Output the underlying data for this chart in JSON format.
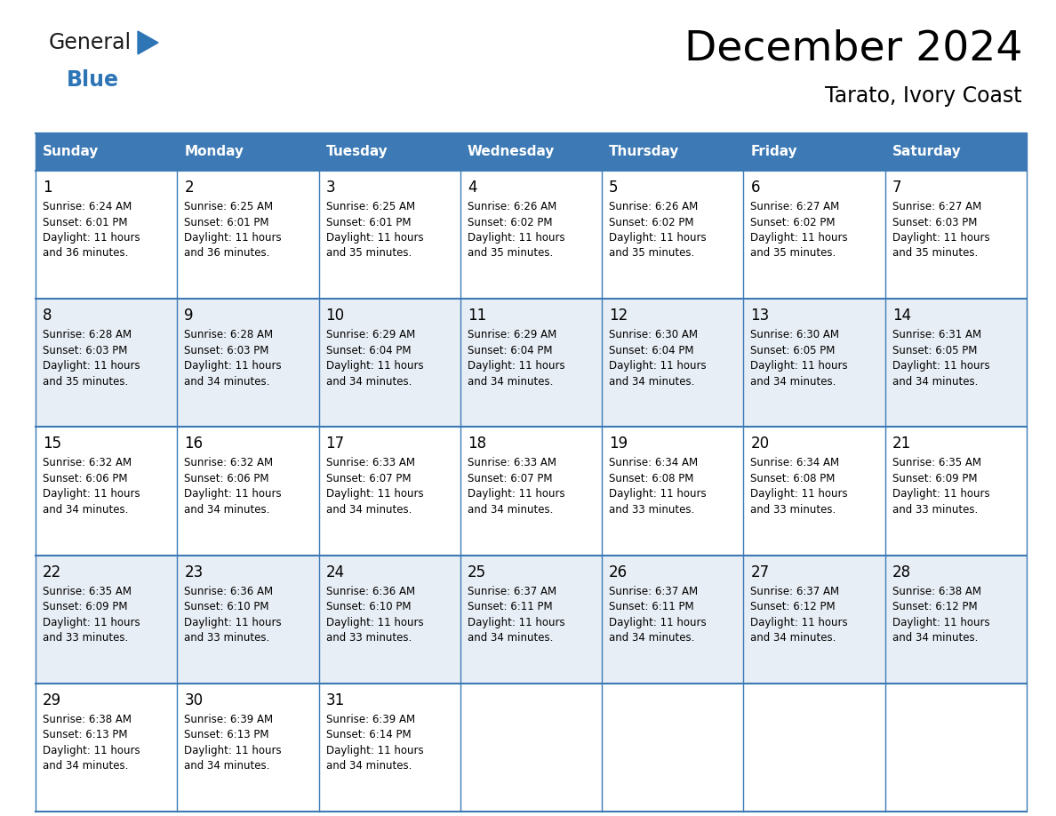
{
  "title": "December 2024",
  "subtitle": "Tarato, Ivory Coast",
  "header_color": "#3d7ab5",
  "header_text_color": "#FFFFFF",
  "days_of_week": [
    "Sunday",
    "Monday",
    "Tuesday",
    "Wednesday",
    "Thursday",
    "Friday",
    "Saturday"
  ],
  "row_colors": [
    "#FFFFFF",
    "#e8eef5",
    "#FFFFFF",
    "#e8eef5",
    "#FFFFFF"
  ],
  "white_color": "#FFFFFF",
  "grid_line_color": "#3d7ab5",
  "text_color": "#000000",
  "logo_general_color": "#1a1a1a",
  "logo_blue_color": "#2E75B6",
  "calendar_data": [
    [
      {
        "day": 1,
        "sunrise": "6:24 AM",
        "sunset": "6:01 PM",
        "daylight": "11 hours and 36 minutes."
      },
      {
        "day": 2,
        "sunrise": "6:25 AM",
        "sunset": "6:01 PM",
        "daylight": "11 hours and 36 minutes."
      },
      {
        "day": 3,
        "sunrise": "6:25 AM",
        "sunset": "6:01 PM",
        "daylight": "11 hours and 35 minutes."
      },
      {
        "day": 4,
        "sunrise": "6:26 AM",
        "sunset": "6:02 PM",
        "daylight": "11 hours and 35 minutes."
      },
      {
        "day": 5,
        "sunrise": "6:26 AM",
        "sunset": "6:02 PM",
        "daylight": "11 hours and 35 minutes."
      },
      {
        "day": 6,
        "sunrise": "6:27 AM",
        "sunset": "6:02 PM",
        "daylight": "11 hours and 35 minutes."
      },
      {
        "day": 7,
        "sunrise": "6:27 AM",
        "sunset": "6:03 PM",
        "daylight": "11 hours and 35 minutes."
      }
    ],
    [
      {
        "day": 8,
        "sunrise": "6:28 AM",
        "sunset": "6:03 PM",
        "daylight": "11 hours and 35 minutes."
      },
      {
        "day": 9,
        "sunrise": "6:28 AM",
        "sunset": "6:03 PM",
        "daylight": "11 hours and 34 minutes."
      },
      {
        "day": 10,
        "sunrise": "6:29 AM",
        "sunset": "6:04 PM",
        "daylight": "11 hours and 34 minutes."
      },
      {
        "day": 11,
        "sunrise": "6:29 AM",
        "sunset": "6:04 PM",
        "daylight": "11 hours and 34 minutes."
      },
      {
        "day": 12,
        "sunrise": "6:30 AM",
        "sunset": "6:04 PM",
        "daylight": "11 hours and 34 minutes."
      },
      {
        "day": 13,
        "sunrise": "6:30 AM",
        "sunset": "6:05 PM",
        "daylight": "11 hours and 34 minutes."
      },
      {
        "day": 14,
        "sunrise": "6:31 AM",
        "sunset": "6:05 PM",
        "daylight": "11 hours and 34 minutes."
      }
    ],
    [
      {
        "day": 15,
        "sunrise": "6:32 AM",
        "sunset": "6:06 PM",
        "daylight": "11 hours and 34 minutes."
      },
      {
        "day": 16,
        "sunrise": "6:32 AM",
        "sunset": "6:06 PM",
        "daylight": "11 hours and 34 minutes."
      },
      {
        "day": 17,
        "sunrise": "6:33 AM",
        "sunset": "6:07 PM",
        "daylight": "11 hours and 34 minutes."
      },
      {
        "day": 18,
        "sunrise": "6:33 AM",
        "sunset": "6:07 PM",
        "daylight": "11 hours and 34 minutes."
      },
      {
        "day": 19,
        "sunrise": "6:34 AM",
        "sunset": "6:08 PM",
        "daylight": "11 hours and 33 minutes."
      },
      {
        "day": 20,
        "sunrise": "6:34 AM",
        "sunset": "6:08 PM",
        "daylight": "11 hours and 33 minutes."
      },
      {
        "day": 21,
        "sunrise": "6:35 AM",
        "sunset": "6:09 PM",
        "daylight": "11 hours and 33 minutes."
      }
    ],
    [
      {
        "day": 22,
        "sunrise": "6:35 AM",
        "sunset": "6:09 PM",
        "daylight": "11 hours and 33 minutes."
      },
      {
        "day": 23,
        "sunrise": "6:36 AM",
        "sunset": "6:10 PM",
        "daylight": "11 hours and 33 minutes."
      },
      {
        "day": 24,
        "sunrise": "6:36 AM",
        "sunset": "6:10 PM",
        "daylight": "11 hours and 33 minutes."
      },
      {
        "day": 25,
        "sunrise": "6:37 AM",
        "sunset": "6:11 PM",
        "daylight": "11 hours and 34 minutes."
      },
      {
        "day": 26,
        "sunrise": "6:37 AM",
        "sunset": "6:11 PM",
        "daylight": "11 hours and 34 minutes."
      },
      {
        "day": 27,
        "sunrise": "6:37 AM",
        "sunset": "6:12 PM",
        "daylight": "11 hours and 34 minutes."
      },
      {
        "day": 28,
        "sunrise": "6:38 AM",
        "sunset": "6:12 PM",
        "daylight": "11 hours and 34 minutes."
      }
    ],
    [
      {
        "day": 29,
        "sunrise": "6:38 AM",
        "sunset": "6:13 PM",
        "daylight": "11 hours and 34 minutes."
      },
      {
        "day": 30,
        "sunrise": "6:39 AM",
        "sunset": "6:13 PM",
        "daylight": "11 hours and 34 minutes."
      },
      {
        "day": 31,
        "sunrise": "6:39 AM",
        "sunset": "6:14 PM",
        "daylight": "11 hours and 34 minutes."
      },
      null,
      null,
      null,
      null
    ]
  ],
  "num_cols": 7,
  "num_rows": 5
}
